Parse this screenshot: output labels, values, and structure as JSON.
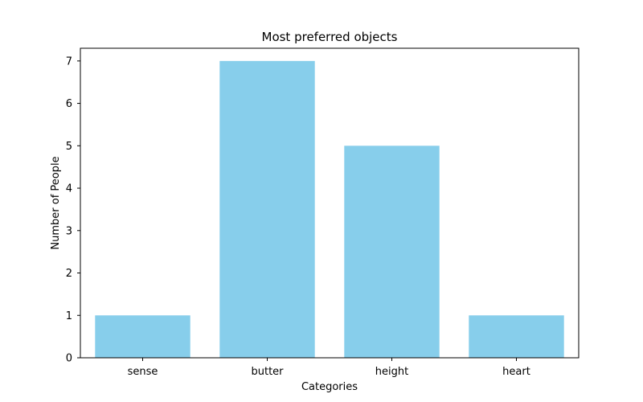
{
  "chart_data": {
    "type": "bar",
    "title": "Most preferred objects",
    "xlabel": "Categories",
    "ylabel": "Number of People",
    "categories": [
      "sense",
      "butter",
      "height",
      "heart"
    ],
    "values": [
      1,
      7,
      5,
      1
    ],
    "ylim": [
      0,
      7.3
    ],
    "yticks": [
      0,
      1,
      2,
      3,
      4,
      5,
      6,
      7
    ],
    "bar_color": "#87ceeb",
    "grid": false,
    "legend": "none"
  }
}
